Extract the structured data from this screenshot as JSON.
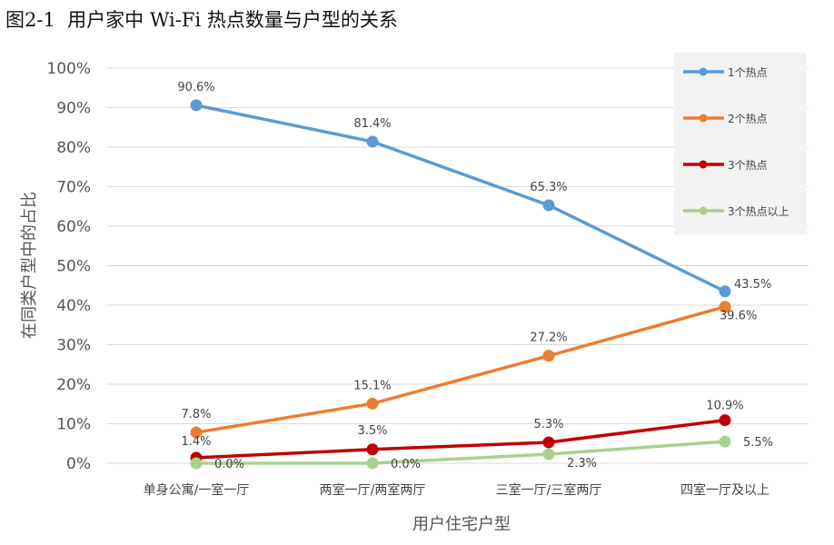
{
  "title": "图2-1  用户家中 Wi-Fi 热点数量与户型的关系",
  "chart_data": {
    "type": "line",
    "title": "图2-1  用户家中 Wi-Fi 热点数量与户型的关系",
    "xlabel": "用户住宅户型",
    "ylabel": "在同类户型中的占比",
    "categories": [
      "单身公寓/一室一厅",
      "两室一厅/两室两厅",
      "三室一厅/三室两厅",
      "四室一厅及以上"
    ],
    "yticks": [
      "0%",
      "10%",
      "20%",
      "30%",
      "40%",
      "50%",
      "60%",
      "70%",
      "80%",
      "90%",
      "100%"
    ],
    "ylim": [
      0,
      100
    ],
    "grid": true,
    "legend": "top-right",
    "series": [
      {
        "name": "1个热点",
        "color": "#5b9bd5",
        "values": [
          90.6,
          81.4,
          65.3,
          43.5
        ],
        "labels": [
          "90.6%",
          "81.4%",
          "65.3%",
          "43.5%"
        ]
      },
      {
        "name": "2个热点",
        "color": "#ed7d31",
        "values": [
          7.8,
          15.1,
          27.2,
          39.6
        ],
        "labels": [
          "7.8%",
          "15.1%",
          "27.2%",
          "39.6%"
        ]
      },
      {
        "name": "3个热点",
        "color": "#c00000",
        "values": [
          1.4,
          3.5,
          5.3,
          10.9
        ],
        "labels": [
          "1.4%",
          "3.5%",
          "5.3%",
          "10.9%"
        ]
      },
      {
        "name": "3个热点以上",
        "color": "#a9d18e",
        "values": [
          0.0,
          0.0,
          2.3,
          5.5
        ],
        "labels": [
          "0.0%",
          "0.0%",
          "2.3%",
          "5.5%"
        ]
      }
    ]
  }
}
